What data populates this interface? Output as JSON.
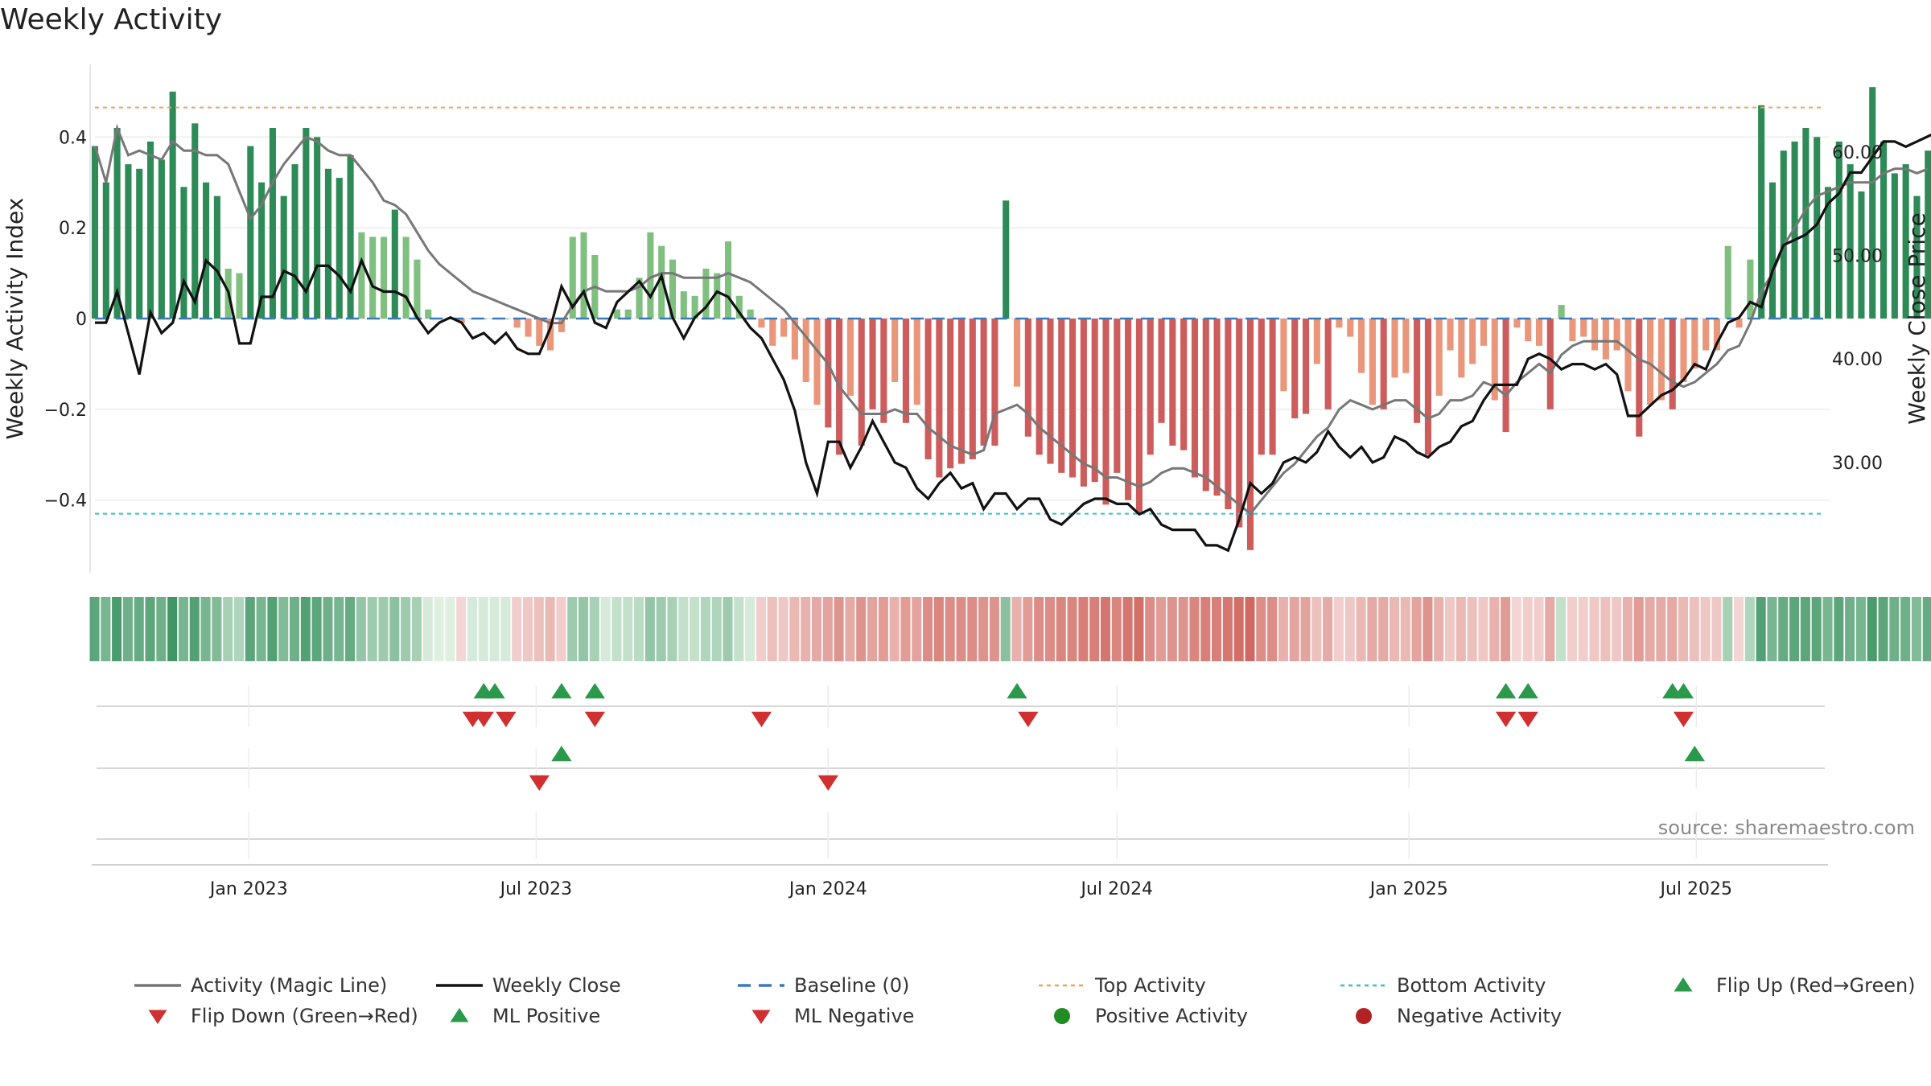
{
  "title": "Weekly Activity",
  "source": "source: sharemaestro.com",
  "chart_data": {
    "type": "bar",
    "ylabel_left": "Weekly Activity Index",
    "ylabel_right": "Weekly Close Price",
    "x_ticks": [
      {
        "date": "2023-01-01",
        "label": "Jan 2023"
      },
      {
        "date": "2023-07-01",
        "label": "Jul 2023"
      },
      {
        "date": "2024-01-01",
        "label": "Jan 2024"
      },
      {
        "date": "2024-07-01",
        "label": "Jul 2024"
      },
      {
        "date": "2025-01-01",
        "label": "Jan 2025"
      },
      {
        "date": "2025-07-01",
        "label": "Jul 2025"
      }
    ],
    "x_range": [
      "2022-09-26",
      "2025-09-22"
    ],
    "left_axis": {
      "ticks": [
        {
          "value": 0.4,
          "label": "0.4"
        },
        {
          "value": 0.2,
          "label": "0.2"
        },
        {
          "value": 0,
          "label": "0"
        },
        {
          "value": -0.2,
          "label": "−0.2"
        },
        {
          "value": -0.4,
          "label": "−0.4"
        }
      ],
      "ylim": [
        -0.56,
        0.56
      ]
    },
    "right_axis": {
      "ticks": [
        {
          "value": 60,
          "label": "60.00"
        },
        {
          "value": 50,
          "label": "50.00"
        },
        {
          "value": 40,
          "label": "40.00"
        },
        {
          "value": 30,
          "label": "30.00"
        }
      ],
      "ylim": [
        19.35,
        68.45
      ]
    },
    "reference_lines": {
      "top_activity": 0.465,
      "bottom_activity": -0.43,
      "baseline": 0
    },
    "activity": [
      0.38,
      0.3,
      0.42,
      0.34,
      0.33,
      0.39,
      0.35,
      0.5,
      0.29,
      0.43,
      0.3,
      0.27,
      0.11,
      0.1,
      0.38,
      0.3,
      0.42,
      0.27,
      0.34,
      0.42,
      0.4,
      0.33,
      0.31,
      0.36,
      0.19,
      0.18,
      0.18,
      0.24,
      0.18,
      0.13,
      0.02,
      0.0,
      0.0,
      -0.01,
      0.0,
      0.0,
      0.0,
      0.0,
      -0.02,
      -0.04,
      -0.06,
      -0.07,
      -0.03,
      0.18,
      0.19,
      0.14,
      0.0,
      0.02,
      0.02,
      0.09,
      0.19,
      0.16,
      0.13,
      0.06,
      0.05,
      0.11,
      0.1,
      0.17,
      0.05,
      0.02,
      -0.02,
      -0.06,
      -0.04,
      -0.09,
      -0.14,
      -0.19,
      -0.24,
      -0.3,
      -0.17,
      -0.28,
      -0.2,
      -0.23,
      -0.14,
      -0.23,
      -0.19,
      -0.31,
      -0.35,
      -0.33,
      -0.32,
      -0.31,
      -0.28,
      -0.28,
      0.26,
      -0.15,
      -0.26,
      -0.3,
      -0.32,
      -0.34,
      -0.35,
      -0.37,
      -0.36,
      -0.41,
      -0.34,
      -0.4,
      -0.43,
      -0.3,
      -0.23,
      -0.28,
      -0.29,
      -0.35,
      -0.38,
      -0.39,
      -0.42,
      -0.46,
      -0.51,
      -0.3,
      -0.3,
      -0.16,
      -0.22,
      -0.21,
      -0.1,
      -0.2,
      -0.02,
      -0.04,
      -0.12,
      -0.19,
      -0.2,
      -0.13,
      -0.12,
      -0.23,
      -0.3,
      -0.17,
      -0.07,
      -0.13,
      -0.1,
      -0.06,
      -0.18,
      -0.25,
      -0.02,
      -0.05,
      -0.06,
      -0.2,
      0.03,
      -0.05,
      -0.04,
      -0.07,
      -0.09,
      -0.07,
      -0.16,
      -0.26,
      -0.19,
      -0.18,
      -0.2,
      -0.14,
      -0.11,
      -0.07,
      -0.07,
      0.16,
      -0.02,
      0.13,
      0.47,
      0.3,
      0.37,
      0.39,
      0.42,
      0.4,
      0.29,
      0.39,
      0.34,
      0.28,
      0.51,
      0.39,
      0.32,
      0.34,
      0.27,
      0.37
    ],
    "magic_line": [
      0.38,
      0.3,
      0.42,
      0.36,
      0.37,
      0.36,
      0.35,
      0.39,
      0.37,
      0.37,
      0.36,
      0.36,
      0.34,
      0.28,
      0.22,
      0.25,
      0.3,
      0.34,
      0.37,
      0.4,
      0.39,
      0.37,
      0.36,
      0.36,
      0.33,
      0.3,
      0.26,
      0.25,
      0.23,
      0.19,
      0.15,
      0.12,
      0.1,
      0.08,
      0.06,
      0.05,
      0.04,
      0.03,
      0.02,
      0.01,
      0.0,
      -0.01,
      -0.01,
      0.03,
      0.06,
      0.07,
      0.06,
      0.06,
      0.06,
      0.07,
      0.09,
      0.1,
      0.1,
      0.09,
      0.09,
      0.09,
      0.09,
      0.1,
      0.09,
      0.08,
      0.06,
      0.04,
      0.02,
      -0.01,
      -0.04,
      -0.07,
      -0.1,
      -0.15,
      -0.18,
      -0.21,
      -0.21,
      -0.21,
      -0.2,
      -0.21,
      -0.21,
      -0.24,
      -0.26,
      -0.28,
      -0.29,
      -0.3,
      -0.29,
      -0.21,
      -0.2,
      -0.19,
      -0.21,
      -0.24,
      -0.26,
      -0.28,
      -0.3,
      -0.32,
      -0.33,
      -0.35,
      -0.35,
      -0.36,
      -0.37,
      -0.36,
      -0.34,
      -0.33,
      -0.33,
      -0.34,
      -0.35,
      -0.37,
      -0.39,
      -0.41,
      -0.43,
      -0.4,
      -0.37,
      -0.34,
      -0.32,
      -0.29,
      -0.26,
      -0.24,
      -0.2,
      -0.18,
      -0.19,
      -0.2,
      -0.19,
      -0.18,
      -0.18,
      -0.2,
      -0.22,
      -0.21,
      -0.18,
      -0.18,
      -0.17,
      -0.14,
      -0.15,
      -0.17,
      -0.14,
      -0.12,
      -0.1,
      -0.12,
      -0.08,
      -0.06,
      -0.05,
      -0.05,
      -0.05,
      -0.05,
      -0.07,
      -0.09,
      -0.1,
      -0.12,
      -0.14,
      -0.15,
      -0.14,
      -0.12,
      -0.1,
      -0.07,
      -0.06,
      -0.01,
      0.06,
      0.1,
      0.16,
      0.2,
      0.24,
      0.27,
      0.28,
      0.29,
      0.3,
      0.3,
      0.3,
      0.32,
      0.33,
      0.33,
      0.32,
      0.33
    ],
    "close": [
      43.5,
      43.5,
      46.5,
      42.5,
      38.5,
      44.5,
      42.5,
      43.5,
      47.5,
      45.5,
      49.5,
      48.5,
      46.5,
      41.5,
      41.5,
      46.0,
      46.0,
      48.5,
      48.0,
      46.5,
      49.0,
      49.0,
      48.0,
      46.5,
      49.5,
      47.0,
      46.5,
      46.5,
      46.0,
      44.0,
      42.5,
      43.5,
      44.0,
      43.5,
      42.0,
      42.5,
      41.5,
      42.5,
      41.0,
      40.5,
      40.5,
      43.0,
      47.0,
      45.0,
      46.5,
      43.5,
      43.0,
      45.5,
      46.5,
      47.5,
      46.0,
      48.0,
      44.0,
      42.0,
      44.0,
      45.0,
      46.5,
      46.0,
      44.5,
      43.0,
      42.0,
      40.0,
      38.0,
      35.0,
      30.0,
      27.0,
      32.0,
      32.0,
      29.5,
      31.5,
      34.0,
      32.0,
      30.0,
      29.5,
      27.5,
      26.5,
      28.0,
      29.0,
      27.5,
      28.0,
      25.5,
      27.0,
      27.0,
      25.5,
      26.5,
      26.5,
      24.5,
      24.0,
      25.0,
      26.0,
      26.5,
      26.5,
      26.0,
      26.0,
      25.0,
      25.5,
      24.0,
      23.5,
      23.5,
      23.5,
      22.0,
      22.0,
      21.5,
      24.5,
      28.0,
      27.0,
      28.0,
      30.0,
      30.5,
      30.0,
      31.0,
      33.0,
      31.5,
      30.5,
      31.5,
      30.0,
      30.5,
      32.5,
      32.0,
      31.0,
      30.5,
      31.5,
      32.0,
      33.5,
      34.0,
      36.0,
      37.5,
      37.5,
      37.5,
      40.0,
      40.5,
      40.0,
      39.0,
      39.5,
      39.5,
      39.0,
      39.5,
      38.5,
      34.5,
      34.5,
      35.5,
      36.5,
      37.0,
      38.0,
      39.5,
      39.0,
      41.5,
      43.5,
      44.0,
      45.5,
      45.0,
      48.5,
      51.0,
      51.5,
      52.0,
      53.0,
      55.0,
      56.0,
      58.0,
      58.0,
      59.5,
      61.0,
      61.0,
      60.5,
      61.0,
      61.5,
      62.0
    ],
    "heatmap_intensity": [
      0.75,
      0.6,
      0.85,
      0.65,
      0.7,
      0.75,
      0.65,
      0.9,
      0.6,
      0.8,
      0.6,
      0.55,
      0.35,
      0.3,
      0.75,
      0.6,
      0.8,
      0.55,
      0.65,
      0.8,
      0.75,
      0.65,
      0.6,
      0.7,
      0.45,
      0.4,
      0.4,
      0.5,
      0.4,
      0.35,
      0.1,
      0.05,
      0.05,
      0.1,
      0.1,
      0.1,
      0.1,
      0.1,
      0.15,
      0.2,
      0.25,
      0.3,
      0.15,
      0.4,
      0.45,
      0.35,
      0.1,
      0.2,
      0.2,
      0.25,
      0.45,
      0.4,
      0.35,
      0.2,
      0.2,
      0.3,
      0.3,
      0.4,
      0.2,
      0.1,
      0.15,
      0.25,
      0.2,
      0.3,
      0.35,
      0.4,
      0.45,
      0.55,
      0.4,
      0.55,
      0.45,
      0.5,
      0.35,
      0.5,
      0.45,
      0.6,
      0.65,
      0.6,
      0.6,
      0.6,
      0.55,
      0.55,
      0.5,
      0.35,
      0.5,
      0.6,
      0.6,
      0.65,
      0.65,
      0.7,
      0.7,
      0.75,
      0.65,
      0.75,
      0.8,
      0.6,
      0.5,
      0.55,
      0.55,
      0.65,
      0.7,
      0.7,
      0.75,
      0.8,
      0.85,
      0.6,
      0.6,
      0.35,
      0.45,
      0.45,
      0.25,
      0.4,
      0.15,
      0.2,
      0.3,
      0.4,
      0.4,
      0.3,
      0.3,
      0.45,
      0.55,
      0.35,
      0.2,
      0.3,
      0.25,
      0.2,
      0.35,
      0.5,
      0.1,
      0.15,
      0.15,
      0.4,
      0.2,
      0.15,
      0.15,
      0.2,
      0.25,
      0.2,
      0.35,
      0.5,
      0.4,
      0.4,
      0.4,
      0.3,
      0.25,
      0.2,
      0.2,
      0.35,
      0.1,
      0.3,
      0.8,
      0.6,
      0.7,
      0.75,
      0.75,
      0.75,
      0.6,
      0.75,
      0.65,
      0.6,
      0.85,
      0.75,
      0.65,
      0.65,
      0.55,
      0.7
    ],
    "flip_up_dates": [
      "2023-05-29",
      "2023-06-05",
      "2023-07-17",
      "2023-08-07",
      "2024-04-29",
      "2025-03-03",
      "2025-03-17",
      "2025-06-16",
      "2025-06-23"
    ],
    "flip_down_dates": [
      "2023-05-22",
      "2023-05-29",
      "2023-06-12",
      "2023-08-07",
      "2023-11-20",
      "2024-05-06",
      "2025-03-03",
      "2025-03-17",
      "2025-06-23"
    ],
    "ml_positive_dates": [
      "2023-07-17",
      "2025-06-30"
    ],
    "ml_negative_dates": [
      "2023-07-03",
      "2024-01-01"
    ],
    "legend": [
      {
        "label": "Activity (Magic Line)",
        "marker": "line",
        "color": "#777777"
      },
      {
        "label": "Weekly Close",
        "marker": "line",
        "color": "#111111"
      },
      {
        "label": "Baseline (0)",
        "marker": "dashed",
        "color": "#3a7abf"
      },
      {
        "label": "Top Activity",
        "marker": "dotted",
        "color": "#f0a060"
      },
      {
        "label": "Bottom Activity",
        "marker": "dotted",
        "color": "#30c0d0"
      },
      {
        "label": "Flip Up (Red→Green)",
        "marker": "triangle-up",
        "color": "#2a9a4a"
      },
      {
        "label": "Flip Down (Green→Red)",
        "marker": "triangle-down",
        "color": "#d03030"
      },
      {
        "label": "ML Positive",
        "marker": "triangle-up",
        "color": "#2a9a4a"
      },
      {
        "label": "ML Negative",
        "marker": "triangle-down",
        "color": "#d03030"
      },
      {
        "label": "Positive Activity",
        "marker": "circle",
        "color": "#228b22"
      },
      {
        "label": "Negative Activity",
        "marker": "circle",
        "color": "#b22222"
      }
    ],
    "colors": {
      "pos_strong": "#2e8b57",
      "pos_light": "#7fbf7f",
      "neg_strong": "#cd5c5c",
      "neg_light": "#e9967a",
      "flip_up": "#2a9a4a",
      "flip_down": "#d03030"
    }
  }
}
